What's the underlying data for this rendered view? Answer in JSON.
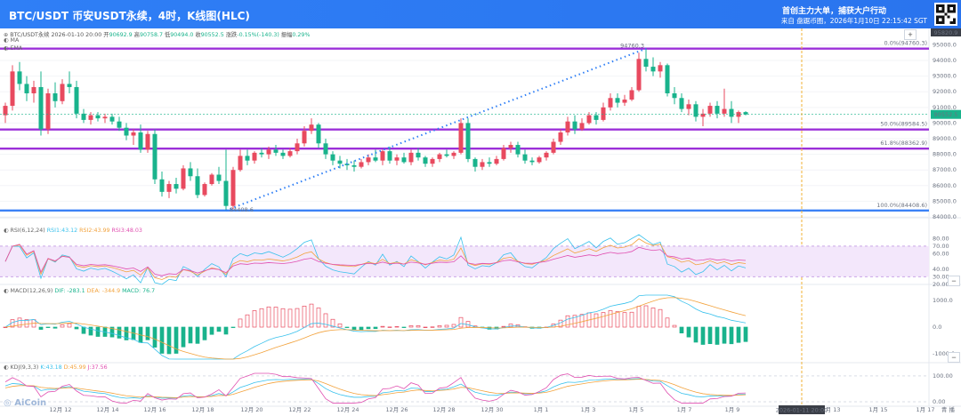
{
  "header": {
    "title": "BTC/USDT 币安USDT永续，4时，K线图(HLC)",
    "tagline": "首创主力大单，捕获大户行动",
    "source": "来自 盘踞币圈，2026年1月10日 22:15:42 SGT"
  },
  "main_info": {
    "symbol": "BTC/USDT永续",
    "datetime": "2026-01-10 20:00",
    "open_label": "开",
    "open": "90692.9",
    "high_label": "高",
    "high": "90758.7",
    "low_label": "低",
    "low": "90494.0",
    "close_label": "收",
    "close": "90552.5",
    "change_label": "涨跌",
    "change": "-0.15%(-140.3)",
    "amplitude_label": "振幅",
    "amplitude": "0.29%"
  },
  "indicators": {
    "ma": "MA",
    "ema": "EMA"
  },
  "price_axis": {
    "ticks": [
      "95000.0",
      "94000.0",
      "93000.0",
      "92000.0",
      "91000.0",
      "90000.0",
      "89000.0",
      "88000.0",
      "87000.0",
      "86000.0",
      "85000.0",
      "84000.0"
    ],
    "top_price": "95820.9",
    "current_price": "90552.5"
  },
  "fib": {
    "level_0": "0.0%(94760.3)",
    "level_50": "50.0%(89584.5)",
    "level_618": "61.8%(88362.9)",
    "level_100": "100.0%(84408.6)",
    "high_label": "94760.3",
    "low_label": "84408.6"
  },
  "rsi": {
    "name": "RSI(6,12,24)",
    "rsi1": "RSI1:43.12",
    "rsi2": "RSI2:43.99",
    "rsi3": "RSI3:48.03",
    "ticks": [
      "80.00",
      "70.00",
      "60.00",
      "40.00",
      "30.00",
      "20.00"
    ]
  },
  "macd": {
    "name": "MACD(12,26,9)",
    "dif": "DIF: -283.1",
    "dea": "DEA: -344.9",
    "macd": "MACD: 76.7",
    "ticks": [
      "1000.0",
      "0.0",
      "-1000.0"
    ]
  },
  "kdj": {
    "name": "KDJ(9,3,3)",
    "k": "K:43.18",
    "d": "D:45.99",
    "j": "J:37.56",
    "ticks": [
      "100.00",
      "0.00"
    ]
  },
  "time_axis": {
    "labels": [
      "12月 12",
      "12月 14",
      "12月 16",
      "12月 18",
      "12月 20",
      "12月 22",
      "12月 24",
      "12月 26",
      "12月 28",
      "12月 30",
      "1月 1",
      "1月 3",
      "1月 5",
      "1月 7",
      "1月 9",
      "1月 13",
      "1月 15",
      "1月 17"
    ],
    "cursor": "2026-01-11 20:00",
    "right_label": "青 播"
  },
  "toolbar": {
    "plus": "+",
    "minus": "−"
  },
  "logo": "AiCoin",
  "colors": {
    "header": "#2f7ff6",
    "up": "#e84a5f",
    "down": "#19b38c",
    "fib": "#9b30d9",
    "fib_100": "#3b82f6",
    "trend": "#2f7ff6",
    "rsi1": "#38c1ec",
    "rsi2": "#f2a23c",
    "rsi3": "#e04fb0"
  },
  "chart_data": {
    "type": "candlestick",
    "y_range": [
      84000,
      95820.9
    ],
    "candles": [
      [
        90500,
        91300,
        90000,
        91100
      ],
      [
        91100,
        93700,
        90800,
        93300
      ],
      [
        93300,
        93900,
        92100,
        92500
      ],
      [
        92500,
        93000,
        91400,
        91900
      ],
      [
        91900,
        92700,
        91300,
        92300
      ],
      [
        92300,
        93300,
        89200,
        89600
      ],
      [
        89600,
        92200,
        89300,
        91900
      ],
      [
        91900,
        92600,
        91000,
        91400
      ],
      [
        91400,
        92800,
        91200,
        92500
      ],
      [
        92500,
        93300,
        91900,
        92300
      ],
      [
        92300,
        92700,
        90300,
        90600
      ],
      [
        90600,
        90900,
        90000,
        90200
      ],
      [
        90200,
        90700,
        89900,
        90500
      ],
      [
        90500,
        90700,
        90100,
        90300
      ],
      [
        90300,
        90600,
        90000,
        90400
      ],
      [
        90400,
        90600,
        89900,
        90100
      ],
      [
        90100,
        90400,
        89500,
        89700
      ],
      [
        89700,
        90000,
        88900,
        89200
      ],
      [
        89200,
        89600,
        88600,
        89400
      ],
      [
        89400,
        89900,
        88100,
        88300
      ],
      [
        88300,
        89500,
        88100,
        89300
      ],
      [
        89300,
        89600,
        86100,
        86400
      ],
      [
        86400,
        86900,
        85300,
        85600
      ],
      [
        85600,
        86300,
        85200,
        86100
      ],
      [
        86100,
        86500,
        85500,
        85800
      ],
      [
        85800,
        87300,
        85700,
        87100
      ],
      [
        87100,
        87500,
        86300,
        86600
      ],
      [
        86600,
        87100,
        85200,
        85400
      ],
      [
        85400,
        86200,
        85300,
        86100
      ],
      [
        86100,
        86800,
        86000,
        86700
      ],
      [
        86700,
        87200,
        86100,
        86300
      ],
      [
        86300,
        88300,
        84408,
        84700
      ],
      [
        84700,
        87200,
        84500,
        87000
      ],
      [
        87000,
        88300,
        86900,
        87900
      ],
      [
        87900,
        88300,
        87300,
        87600
      ],
      [
        87600,
        88200,
        87400,
        88100
      ],
      [
        88100,
        88400,
        87800,
        88000
      ],
      [
        88000,
        88500,
        87700,
        88300
      ],
      [
        88300,
        88600,
        87900,
        88100
      ],
      [
        88100,
        88300,
        87700,
        87900
      ],
      [
        87900,
        88400,
        87800,
        88200
      ],
      [
        88200,
        89000,
        88000,
        88700
      ],
      [
        88700,
        89800,
        88500,
        89500
      ],
      [
        89500,
        90300,
        89300,
        89900
      ],
      [
        89900,
        90000,
        88400,
        88700
      ],
      [
        88700,
        89000,
        87700,
        88000
      ],
      [
        88000,
        88200,
        87300,
        87600
      ],
      [
        87600,
        87900,
        87100,
        87400
      ],
      [
        87400,
        87700,
        87000,
        87300
      ],
      [
        87300,
        87600,
        86900,
        87200
      ],
      [
        87200,
        87700,
        87100,
        87500
      ],
      [
        87500,
        88000,
        87300,
        87800
      ],
      [
        87800,
        88300,
        87500,
        87600
      ],
      [
        87600,
        88300,
        87300,
        88200
      ],
      [
        88200,
        88500,
        87400,
        87600
      ],
      [
        87600,
        88000,
        87300,
        87800
      ],
      [
        87800,
        88100,
        87400,
        87500
      ],
      [
        87500,
        88300,
        87300,
        88100
      ],
      [
        88100,
        88400,
        87600,
        87800
      ],
      [
        87800,
        87900,
        87200,
        87400
      ],
      [
        87400,
        87800,
        87200,
        87700
      ],
      [
        87700,
        88100,
        87500,
        88000
      ],
      [
        88000,
        88300,
        87800,
        87900
      ],
      [
        87900,
        88200,
        87700,
        88100
      ],
      [
        88100,
        90300,
        88000,
        90000
      ],
      [
        90000,
        90300,
        87500,
        87700
      ],
      [
        87700,
        87800,
        86900,
        87200
      ],
      [
        87200,
        87700,
        87000,
        87500
      ],
      [
        87500,
        87800,
        87200,
        87400
      ],
      [
        87400,
        87900,
        87300,
        87700
      ],
      [
        87700,
        88600,
        87600,
        88400
      ],
      [
        88400,
        88800,
        88100,
        88600
      ],
      [
        88600,
        88800,
        87800,
        88000
      ],
      [
        88000,
        88300,
        87400,
        87600
      ],
      [
        87600,
        87800,
        87300,
        87500
      ],
      [
        87500,
        87900,
        87400,
        87800
      ],
      [
        87800,
        88200,
        87600,
        88100
      ],
      [
        88100,
        89000,
        88000,
        88800
      ],
      [
        88800,
        89600,
        88600,
        89400
      ],
      [
        89400,
        90400,
        89200,
        90100
      ],
      [
        90100,
        90500,
        89300,
        89600
      ],
      [
        89600,
        90300,
        89500,
        90000
      ],
      [
        90000,
        90700,
        89900,
        90500
      ],
      [
        90500,
        90700,
        89900,
        90200
      ],
      [
        90200,
        91300,
        90100,
        91000
      ],
      [
        91000,
        91900,
        90800,
        91600
      ],
      [
        91600,
        91900,
        91000,
        91300
      ],
      [
        91300,
        91800,
        91100,
        91500
      ],
      [
        91500,
        92300,
        91400,
        92100
      ],
      [
        92100,
        94500,
        92000,
        94100
      ],
      [
        94100,
        94760,
        93300,
        93600
      ],
      [
        93600,
        94200,
        93000,
        93300
      ],
      [
        93300,
        93900,
        92900,
        93700
      ],
      [
        93700,
        93800,
        91700,
        91900
      ],
      [
        91900,
        92300,
        91200,
        91600
      ],
      [
        91600,
        91900,
        90700,
        90900
      ],
      [
        90900,
        91500,
        90500,
        91200
      ],
      [
        91200,
        91400,
        90100,
        90400
      ],
      [
        90400,
        90900,
        89800,
        90600
      ],
      [
        90600,
        91300,
        90400,
        91100
      ],
      [
        91100,
        91400,
        90300,
        90600
      ],
      [
        90600,
        92200,
        90400,
        90900
      ],
      [
        90900,
        91400,
        90000,
        90400
      ],
      [
        90400,
        90800,
        90000,
        90700
      ],
      [
        90700,
        90758,
        90494,
        90552
      ]
    ],
    "fib_levels": [
      {
        "label": "0.0%",
        "value": 94760.3
      },
      {
        "label": "50.0%",
        "value": 89584.5
      },
      {
        "label": "61.8%",
        "value": 88362.9
      },
      {
        "label": "100.0%",
        "value": 84408.6
      }
    ]
  }
}
